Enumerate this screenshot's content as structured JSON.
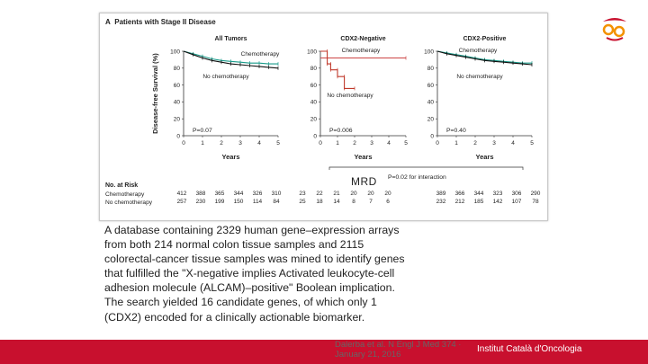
{
  "figure": {
    "panel_label": "A",
    "panel_title": "Patients with Stage II Disease",
    "ylabel": "Disease-free Survival (%)",
    "xlabel": "Years",
    "interaction_note": "P=0.02 for interaction",
    "chemo_label": "Chemotherapy",
    "nochemo_label": "No chemotherapy",
    "yticks": [
      "100",
      "80",
      "60",
      "40",
      "20",
      "0"
    ],
    "xticks": [
      "0",
      "1",
      "2",
      "3",
      "4",
      "5"
    ]
  },
  "chart_data": [
    {
      "type": "line",
      "title": "All Tumors",
      "xlabel": "Years",
      "ylabel": "Disease-free Survival (%)",
      "xlim": [
        0,
        5
      ],
      "ylim": [
        0,
        100
      ],
      "p_value": "P=0.07",
      "series": [
        {
          "name": "Chemotherapy",
          "x": [
            0,
            0.5,
            1,
            1.5,
            2,
            2.5,
            3,
            3.5,
            4,
            4.5,
            5
          ],
          "values": [
            100,
            97,
            94,
            91,
            89,
            88,
            87,
            86,
            86,
            85,
            85
          ]
        },
        {
          "name": "No chemotherapy",
          "x": [
            0,
            0.5,
            1,
            1.5,
            2,
            2.5,
            3,
            3.5,
            4,
            4.5,
            5
          ],
          "values": [
            100,
            96,
            92,
            89,
            87,
            85,
            84,
            83,
            82,
            81,
            80
          ]
        }
      ]
    },
    {
      "type": "line",
      "title": "CDX2-Negative",
      "xlabel": "Years",
      "ylabel": "Disease-free Survival (%)",
      "xlim": [
        0,
        5
      ],
      "ylim": [
        0,
        100
      ],
      "p_value": "P=0.006",
      "series": [
        {
          "name": "Chemotherapy",
          "x": [
            0,
            5
          ],
          "values": [
            92,
            92
          ]
        },
        {
          "name": "No chemotherapy",
          "x": [
            0,
            0.4,
            0.4,
            0.6,
            0.6,
            1.0,
            1.0,
            1.4,
            1.4,
            2.0
          ],
          "values": [
            100,
            100,
            85,
            85,
            78,
            78,
            70,
            70,
            56,
            56
          ]
        }
      ]
    },
    {
      "type": "line",
      "title": "CDX2-Positive",
      "xlabel": "Years",
      "ylabel": "Disease-free Survival (%)",
      "xlim": [
        0,
        5
      ],
      "ylim": [
        0,
        100
      ],
      "p_value": "P=0.40",
      "series": [
        {
          "name": "Chemotherapy",
          "x": [
            0,
            0.5,
            1,
            1.5,
            2,
            2.5,
            3,
            3.5,
            4,
            4.5,
            5
          ],
          "values": [
            100,
            98,
            96,
            94,
            92,
            90,
            89,
            88,
            87,
            86,
            86
          ]
        },
        {
          "name": "No chemotherapy",
          "x": [
            0,
            0.5,
            1,
            1.5,
            2,
            2.5,
            3,
            3.5,
            4,
            4.5,
            5
          ],
          "values": [
            100,
            97,
            95,
            93,
            91,
            89,
            88,
            87,
            86,
            85,
            84
          ]
        }
      ]
    }
  ],
  "risk_table": {
    "title": "No. at Risk",
    "row_labels": [
      "Chemotherapy",
      "No chemotherapy"
    ],
    "groups": [
      {
        "chemo": [
          "412",
          "388",
          "365",
          "344",
          "326",
          "310"
        ],
        "nochemo": [
          "257",
          "230",
          "199",
          "150",
          "114",
          "84"
        ]
      },
      {
        "chemo": [
          "23",
          "22",
          "21",
          "20",
          "20",
          "20"
        ],
        "nochemo": [
          "25",
          "18",
          "14",
          "8",
          "7",
          "6"
        ]
      },
      {
        "chemo": [
          "389",
          "366",
          "344",
          "323",
          "306",
          "290"
        ],
        "nochemo": [
          "232",
          "212",
          "185",
          "142",
          "107",
          "78"
        ]
      }
    ]
  },
  "mrd_label": "MRD",
  "description": "A database containing 2329 human gene–expression arrays from both 214 normal colon tissue samples and 2115 colorectal-cancer tissue samples was mined to identify genes that fulfilled the \"X-negative implies Activated leukocyte-cell adhesion molecule (ALCAM)–positive\" Boolean implication. The search yielded 16 candidate genes, of which only 1 (CDX2) encoded for a clinically actionable biomarker.",
  "citation": "Dalerba et al. N Engl J Med 374 · January 21, 2016",
  "institution": "Institut Català d'Oncologia",
  "colors": {
    "chemo": "#1a9b8a",
    "nochemo": "#111111",
    "cdx2neg_nochemo": "#c0392b",
    "brand": "#c8102e",
    "logo_orange": "#f39200"
  }
}
